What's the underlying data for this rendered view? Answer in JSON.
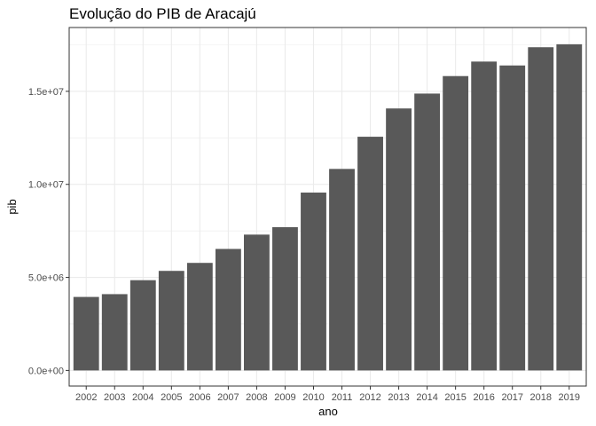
{
  "chart_data": {
    "type": "bar",
    "title": "Evolução do PIB de Aracajú",
    "xlabel": "ano",
    "ylabel": "pib",
    "categories": [
      "2002",
      "2003",
      "2004",
      "2005",
      "2006",
      "2007",
      "2008",
      "2009",
      "2010",
      "2011",
      "2012",
      "2013",
      "2014",
      "2015",
      "2016",
      "2017",
      "2018",
      "2019"
    ],
    "values": [
      3950000,
      4100000,
      4850000,
      5350000,
      5780000,
      6530000,
      7300000,
      7700000,
      9560000,
      10830000,
      12560000,
      14080000,
      14880000,
      15820000,
      16600000,
      16390000,
      17370000,
      17530000
    ],
    "ylim": [
      -840000,
      18430000
    ],
    "y_ticks": [
      0,
      5000000,
      10000000,
      15000000
    ],
    "y_tick_labels": [
      "0.0e+00",
      "5.0e+06",
      "1.0e+07",
      "1.5e+07"
    ],
    "grid": true,
    "bar_color": "#595959",
    "panel_border_color": "#333333",
    "grid_color": "#ebebeb"
  }
}
